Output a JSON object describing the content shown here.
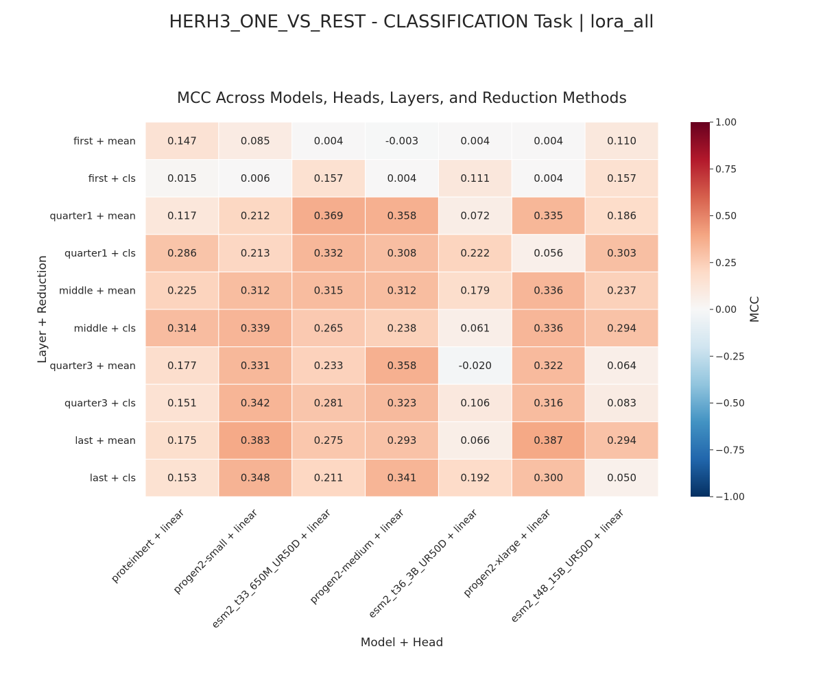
{
  "suptitle": "HERH3_ONE_VS_REST - CLASSIFICATION Task | lora_all",
  "chart_data": {
    "type": "heatmap",
    "title": "MCC Across Models, Heads, Layers, and Reduction Methods",
    "xlabel": "Model + Head",
    "ylabel": "Layer + Reduction",
    "x_categories": [
      "proteinbert + linear",
      "progen2-small + linear",
      "esm2_t33_650M_UR50D + linear",
      "progen2-medium + linear",
      "esm2_t36_3B_UR50D + linear",
      "progen2-xlarge + linear",
      "esm2_t48_15B_UR50D + linear"
    ],
    "y_categories": [
      "first + mean",
      "first + cls",
      "quarter1 + mean",
      "quarter1 + cls",
      "middle + mean",
      "middle + cls",
      "quarter3 + mean",
      "quarter3 + cls",
      "last + mean",
      "last + cls"
    ],
    "values": [
      [
        0.147,
        0.085,
        0.004,
        -0.003,
        0.004,
        0.004,
        0.11
      ],
      [
        0.015,
        0.006,
        0.157,
        0.004,
        0.111,
        0.004,
        0.157
      ],
      [
        0.117,
        0.212,
        0.369,
        0.358,
        0.072,
        0.335,
        0.186
      ],
      [
        0.286,
        0.213,
        0.332,
        0.308,
        0.222,
        0.056,
        0.303
      ],
      [
        0.225,
        0.312,
        0.315,
        0.312,
        0.179,
        0.336,
        0.237
      ],
      [
        0.314,
        0.339,
        0.265,
        0.238,
        0.061,
        0.336,
        0.294
      ],
      [
        0.177,
        0.331,
        0.233,
        0.358,
        -0.02,
        0.322,
        0.064
      ],
      [
        0.151,
        0.342,
        0.281,
        0.323,
        0.106,
        0.316,
        0.083
      ],
      [
        0.175,
        0.383,
        0.275,
        0.293,
        0.066,
        0.387,
        0.294
      ],
      [
        0.153,
        0.348,
        0.211,
        0.341,
        0.192,
        0.3,
        0.05
      ]
    ],
    "value_format_decimals": 3,
    "colormap": "RdBu_r",
    "vmin": -1.0,
    "vmax": 1.0,
    "colorbar": {
      "label": "MCC",
      "ticks": [
        "1.00",
        "0.75",
        "0.50",
        "0.25",
        "0.00",
        "−0.25",
        "−0.50",
        "−0.75",
        "−1.00"
      ],
      "tick_values": [
        1.0,
        0.75,
        0.5,
        0.25,
        0.0,
        -0.25,
        -0.5,
        -0.75,
        -1.0
      ]
    },
    "grid": false
  }
}
